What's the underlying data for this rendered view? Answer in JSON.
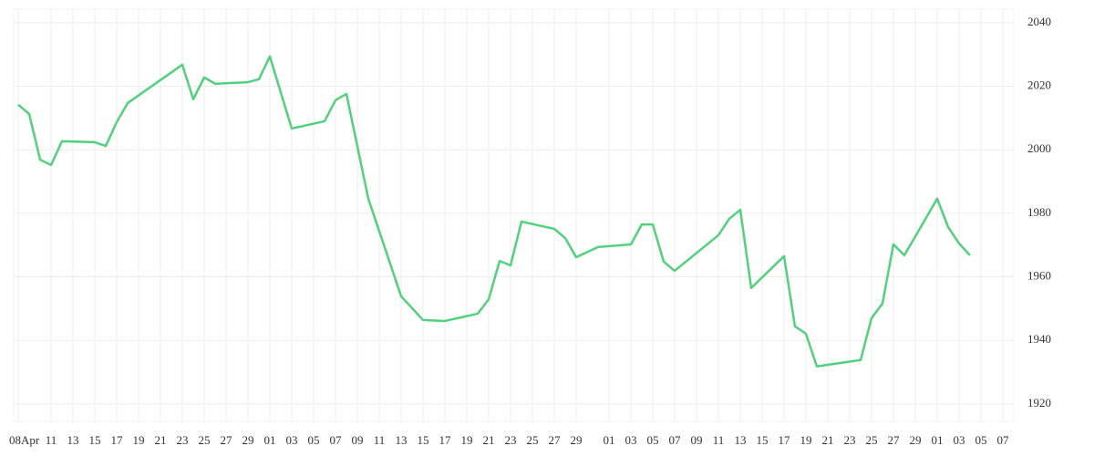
{
  "chart_data": {
    "type": "line",
    "x": [
      "04-08",
      "04-09",
      "04-10",
      "04-11",
      "04-12",
      "04-15",
      "04-16",
      "04-17",
      "04-18",
      "04-23",
      "04-24",
      "04-25",
      "04-26",
      "04-29",
      "04-30",
      "05-01",
      "05-03",
      "05-06",
      "05-07",
      "05-08",
      "05-10",
      "05-13",
      "05-15",
      "05-17",
      "05-20",
      "05-21",
      "05-22",
      "05-23",
      "05-24",
      "05-27",
      "05-28",
      "05-29",
      "05-31",
      "06-03",
      "06-04",
      "06-05",
      "06-06",
      "06-07",
      "06-11",
      "06-12",
      "06-13",
      "06-14",
      "06-17",
      "06-18",
      "06-19",
      "06-20",
      "06-24",
      "06-25",
      "06-26",
      "06-27",
      "06-28",
      "07-01",
      "07-02",
      "07-03",
      "07-04"
    ],
    "series": [
      {
        "color": "#52d17c",
        "values": [
          2014.2,
          2011.3,
          1996.9,
          1995.2,
          2002.7,
          2002.4,
          2001.2,
          2008.7,
          2014.7,
          2026.8,
          2015.9,
          2022.8,
          2020.8,
          2021.3,
          2022.2,
          2029.4,
          2006.7,
          2009.0,
          2015.6,
          2017.6,
          1984.6,
          1953.9,
          1946.4,
          1946.1,
          1948.4,
          1952.9,
          1965.0,
          1963.6,
          1977.4,
          1975.1,
          1972.2,
          1966.2,
          1969.4,
          1970.2,
          1976.5,
          1976.5,
          1964.8,
          1961.9,
          1973.1,
          1978.3,
          1981.1,
          1956.5,
          1966.5,
          1944.4,
          1942.1,
          1931.8,
          1933.8,
          1947.0,
          1951.6,
          1970.2,
          1966.8,
          1984.6,
          1975.7,
          1970.5,
          1966.8
        ]
      }
    ],
    "xlim": [
      "04-08",
      "07-08"
    ],
    "xticks": [
      {
        "value": "04-08",
        "label": "08Apr"
      },
      {
        "value": "04-11",
        "label": "11"
      },
      {
        "value": "04-13",
        "label": "13"
      },
      {
        "value": "04-15",
        "label": "15"
      },
      {
        "value": "04-17",
        "label": "17"
      },
      {
        "value": "04-19",
        "label": "19"
      },
      {
        "value": "04-21",
        "label": "21"
      },
      {
        "value": "04-23",
        "label": "23"
      },
      {
        "value": "04-25",
        "label": "25"
      },
      {
        "value": "04-27",
        "label": "27"
      },
      {
        "value": "04-29",
        "label": "29"
      },
      {
        "value": "05-01",
        "label": "01"
      },
      {
        "value": "05-03",
        "label": "03"
      },
      {
        "value": "05-05",
        "label": "05"
      },
      {
        "value": "05-07",
        "label": "07"
      },
      {
        "value": "05-09",
        "label": "09"
      },
      {
        "value": "05-11",
        "label": "11"
      },
      {
        "value": "05-13",
        "label": "13"
      },
      {
        "value": "05-15",
        "label": "15"
      },
      {
        "value": "05-17",
        "label": "17"
      },
      {
        "value": "05-19",
        "label": "19"
      },
      {
        "value": "05-21",
        "label": "21"
      },
      {
        "value": "05-23",
        "label": "23"
      },
      {
        "value": "05-25",
        "label": "25"
      },
      {
        "value": "05-27",
        "label": "27"
      },
      {
        "value": "05-29",
        "label": "29"
      },
      {
        "value": "06-01",
        "label": "01"
      },
      {
        "value": "06-03",
        "label": "03"
      },
      {
        "value": "06-05",
        "label": "05"
      },
      {
        "value": "06-07",
        "label": "07"
      },
      {
        "value": "06-09",
        "label": "09"
      },
      {
        "value": "06-11",
        "label": "11"
      },
      {
        "value": "06-13",
        "label": "13"
      },
      {
        "value": "06-15",
        "label": "15"
      },
      {
        "value": "06-17",
        "label": "17"
      },
      {
        "value": "06-19",
        "label": "19"
      },
      {
        "value": "06-21",
        "label": "21"
      },
      {
        "value": "06-23",
        "label": "23"
      },
      {
        "value": "06-25",
        "label": "25"
      },
      {
        "value": "06-27",
        "label": "27"
      },
      {
        "value": "06-29",
        "label": "29"
      },
      {
        "value": "07-01",
        "label": "01"
      },
      {
        "value": "07-03",
        "label": "03"
      },
      {
        "value": "07-05",
        "label": "05"
      },
      {
        "value": "07-07",
        "label": "07"
      }
    ],
    "ylim": [
      1914.5,
      2044.3
    ],
    "yticks": [
      1920,
      1940,
      1960,
      1980,
      2000,
      2020,
      2040
    ],
    "grid": true
  }
}
